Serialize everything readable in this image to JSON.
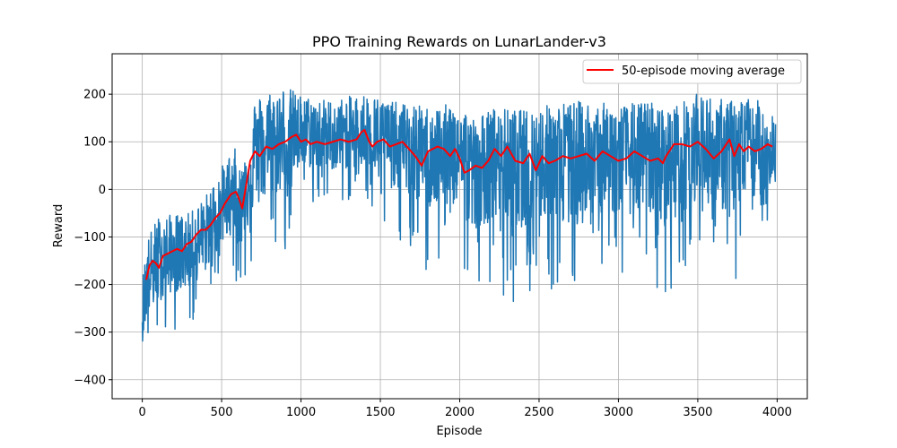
{
  "chart_data": {
    "type": "line",
    "title": "PPO Training Rewards on LunarLander-v3",
    "xlabel": "Episode",
    "ylabel": "Reward",
    "xlim": [
      -190,
      4190
    ],
    "ylim": [
      -440,
      285
    ],
    "xticks": [
      0,
      500,
      1000,
      1500,
      2000,
      2500,
      3000,
      3500,
      4000
    ],
    "yticks": [
      -400,
      -300,
      -200,
      -100,
      0,
      100,
      200
    ],
    "grid": true,
    "legend_position": "top-right",
    "series": [
      {
        "name": "",
        "color": "#1f77b4",
        "kind": "raw_rewards",
        "envelope": {
          "x": [
            0,
            30,
            100,
            200,
            300,
            400,
            500,
            580,
            620,
            700,
            800,
            900,
            1000,
            1200,
            1400,
            1600,
            1800,
            2000,
            2100,
            2200,
            2400,
            2600,
            2800,
            3000,
            3200,
            3300,
            3500,
            3700,
            3800,
            3900,
            3990
          ],
          "mean": [
            -260,
            -190,
            -160,
            -140,
            -130,
            -100,
            -40,
            -5,
            -40,
            70,
            90,
            100,
            110,
            100,
            115,
            95,
            70,
            85,
            35,
            60,
            55,
            70,
            75,
            65,
            75,
            55,
            90,
            75,
            85,
            80,
            85
          ],
          "spread_up": [
            90,
            110,
            130,
            110,
            100,
            110,
            110,
            120,
            100,
            150,
            150,
            150,
            110,
            110,
            110,
            110,
            130,
            120,
            140,
            140,
            140,
            140,
            140,
            140,
            140,
            140,
            140,
            140,
            140,
            130,
            100
          ],
          "spread_down": [
            140,
            160,
            170,
            160,
            170,
            160,
            170,
            180,
            180,
            250,
            230,
            230,
            140,
            130,
            150,
            200,
            250,
            260,
            260,
            280,
            300,
            280,
            270,
            260,
            280,
            300,
            240,
            280,
            270,
            200,
            140
          ]
        }
      },
      {
        "name": "50-episode moving average",
        "color": "#ff0000",
        "x": [
          25,
          45,
          65,
          85,
          105,
          130,
          160,
          190,
          220,
          250,
          280,
          310,
          340,
          370,
          400,
          430,
          460,
          490,
          520,
          560,
          590,
          610,
          630,
          650,
          680,
          710,
          740,
          780,
          820,
          860,
          900,
          940,
          970,
          1000,
          1030,
          1060,
          1100,
          1150,
          1200,
          1250,
          1300,
          1350,
          1380,
          1400,
          1430,
          1450,
          1480,
          1520,
          1560,
          1600,
          1640,
          1680,
          1720,
          1760,
          1800,
          1830,
          1860,
          1900,
          1940,
          1970,
          2000,
          2030,
          2060,
          2100,
          2140,
          2180,
          2220,
          2260,
          2300,
          2350,
          2400,
          2440,
          2480,
          2520,
          2560,
          2600,
          2650,
          2700,
          2750,
          2800,
          2850,
          2900,
          2950,
          3000,
          3050,
          3100,
          3150,
          3200,
          3250,
          3280,
          3300,
          3350,
          3400,
          3450,
          3500,
          3550,
          3600,
          3650,
          3700,
          3730,
          3760,
          3790,
          3820,
          3860,
          3900,
          3940,
          3970
        ],
        "values": [
          -190,
          -160,
          -150,
          -155,
          -165,
          -140,
          -135,
          -130,
          -125,
          -130,
          -115,
          -110,
          -95,
          -85,
          -85,
          -75,
          -60,
          -50,
          -30,
          -10,
          -5,
          -20,
          -40,
          0,
          60,
          80,
          70,
          90,
          85,
          95,
          100,
          110,
          115,
          100,
          105,
          95,
          100,
          95,
          100,
          105,
          100,
          105,
          120,
          125,
          100,
          90,
          100,
          105,
          90,
          95,
          100,
          85,
          70,
          50,
          80,
          85,
          90,
          85,
          70,
          85,
          65,
          35,
          40,
          50,
          45,
          60,
          85,
          70,
          90,
          60,
          55,
          75,
          40,
          70,
          55,
          60,
          70,
          65,
          70,
          75,
          60,
          80,
          70,
          60,
          65,
          80,
          70,
          60,
          65,
          55,
          70,
          95,
          95,
          90,
          100,
          85,
          65,
          80,
          105,
          70,
          95,
          80,
          90,
          80,
          85,
          95,
          90
        ]
      }
    ]
  }
}
